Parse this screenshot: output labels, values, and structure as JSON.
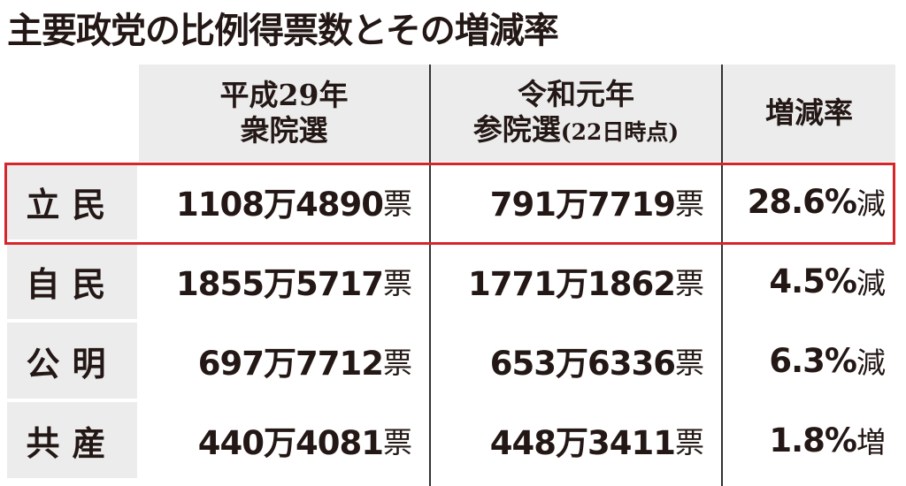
{
  "title": "主要政党の比例得票数とその増減率",
  "chart_data": {
    "type": "table",
    "title": "主要政党の比例得票数とその増減率",
    "columns": [
      {
        "line1": "平成29年",
        "line2": "衆院選",
        "note": ""
      },
      {
        "line1": "令和元年",
        "line2": "参院選",
        "note": "(22日時点)"
      },
      {
        "line1": "増減率",
        "line2": "",
        "note": ""
      }
    ],
    "rows": [
      {
        "party": "立民",
        "v2017": "1108万4890",
        "v2019": "791万7719",
        "rate": "28.6%",
        "dir": "減",
        "highlighted": true
      },
      {
        "party": "自民",
        "v2017": "1855万5717",
        "v2019": "1771万1862",
        "rate": "4.5%",
        "dir": "減",
        "highlighted": false
      },
      {
        "party": "公明",
        "v2017": "697万7712",
        "v2019": "653万6336",
        "rate": "6.3%",
        "dir": "減",
        "highlighted": false
      },
      {
        "party": "共産",
        "v2017": "440万4081",
        "v2019": "448万3411",
        "rate": "1.8%",
        "dir": "増",
        "highlighted": false
      }
    ],
    "unit": "票",
    "highlight_color": "#d7262b"
  }
}
